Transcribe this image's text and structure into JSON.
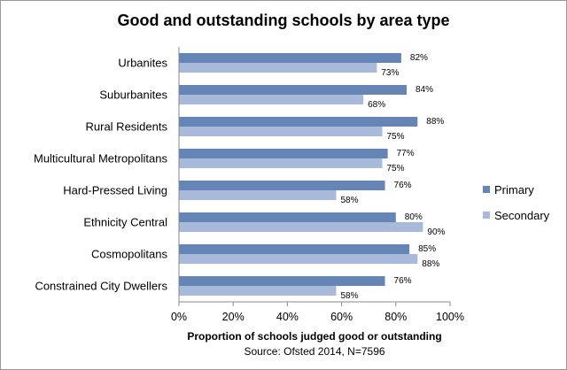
{
  "chart_data": {
    "type": "bar",
    "orientation": "horizontal",
    "title": "Good and outstanding schools by area type",
    "xlabel": "Proportion of schools judged good or outstanding",
    "source": "Source: Ofsted 2014, N=7596",
    "categories": [
      "Urbanites",
      "Suburbanites",
      "Rural Residents",
      "Multicultural Metropolitans",
      "Hard-Pressed Living",
      "Ethnicity Central",
      "Cosmopolitans",
      "Constrained City Dwellers"
    ],
    "series": [
      {
        "name": "Primary",
        "color": "#6585b7",
        "values": [
          82,
          84,
          88,
          77,
          76,
          80,
          85,
          76
        ]
      },
      {
        "name": "Secondary",
        "color": "#a9b9da",
        "values": [
          73,
          68,
          75,
          75,
          58,
          90,
          88,
          58
        ]
      }
    ],
    "xlim": [
      0,
      100
    ],
    "xticks": [
      "0%",
      "20%",
      "40%",
      "60%",
      "80%",
      "100%"
    ],
    "grid": false,
    "legend": "right"
  }
}
